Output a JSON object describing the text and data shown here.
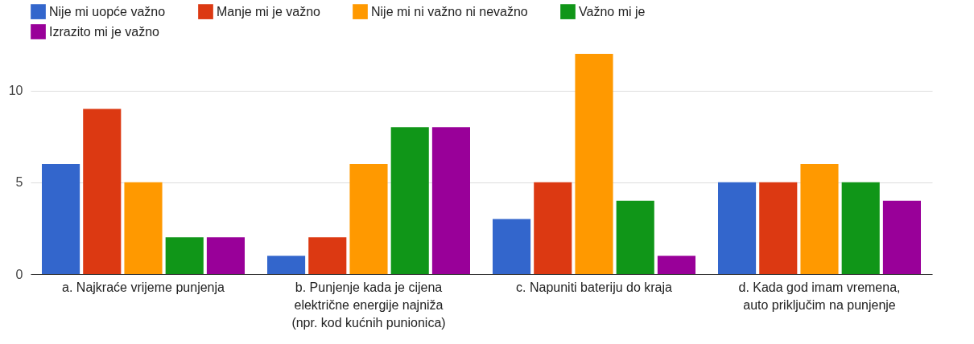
{
  "chart_data": {
    "type": "bar",
    "categories": [
      "a. Najkraće vrijeme punjenja",
      "b. Punjenje kada je cijena električne energije najniža (npr. kod kućnih punionica)",
      "c. Napuniti bateriju do kraja",
      "d. Kada god imam vremena, auto priključim na punjenje"
    ],
    "series": [
      {
        "name": "Nije mi uopće važno",
        "color": "#3366cc",
        "values": [
          6,
          1,
          3,
          5
        ]
      },
      {
        "name": "Manje mi je važno",
        "color": "#dc3912",
        "values": [
          9,
          2,
          5,
          5
        ]
      },
      {
        "name": "Nije mi ni važno ni nevažno",
        "color": "#ff9900",
        "values": [
          5,
          6,
          12,
          6
        ]
      },
      {
        "name": "Važno mi je",
        "color": "#109618",
        "values": [
          2,
          8,
          4,
          5
        ]
      },
      {
        "name": "Izrazito mi je važno",
        "color": "#990099",
        "values": [
          2,
          8,
          1,
          4
        ]
      }
    ],
    "ylim": [
      0,
      12
    ],
    "yticks": [
      0,
      5,
      10
    ],
    "grid": "y",
    "legend": "top left"
  }
}
